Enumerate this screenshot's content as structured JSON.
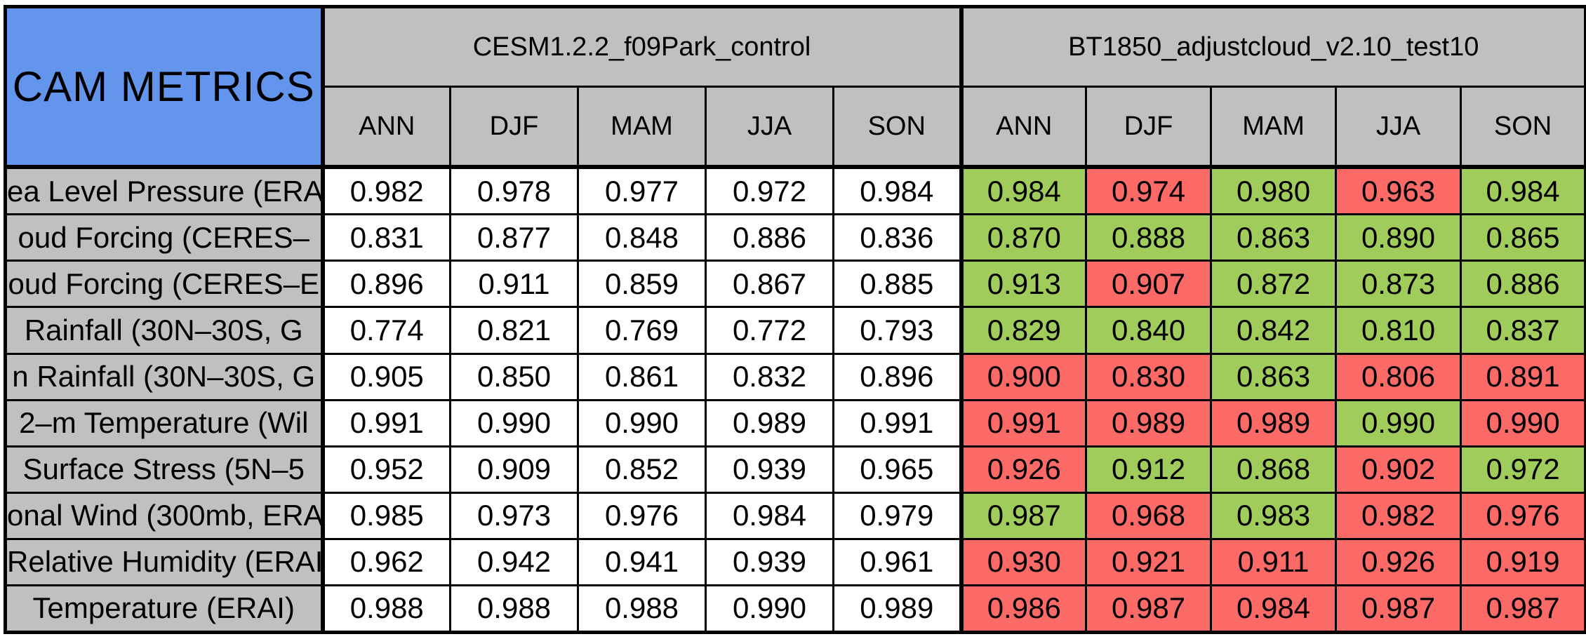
{
  "figure": {
    "title": "CAM METRICS"
  },
  "colors": {
    "title_bg": "#6495ed",
    "header_bg": "#c0c0c0",
    "control_cell_bg": "#ffffff",
    "better_bg": "#a0cc5c",
    "worse_bg": "#fc6a68",
    "border": "#000000",
    "text": "#000000"
  },
  "chart_data": {
    "type": "table",
    "title": "CAM METRICS",
    "column_groups": [
      "CESM1.2.2_f09Park_control",
      "BT1850_adjustcloud_v2.10_test10"
    ],
    "seasons": [
      "ANN",
      "DJF",
      "MAM",
      "JJA",
      "SON"
    ],
    "legend_note": "test-run cells shaded green (better) or red (worse) vs control",
    "rows": [
      {
        "label": "ea Level Pressure (ERA",
        "control": [
          "0.982",
          "0.978",
          "0.977",
          "0.972",
          "0.984"
        ],
        "test": [
          "0.984",
          "0.974",
          "0.980",
          "0.963",
          "0.984"
        ],
        "test_status": [
          "better",
          "worse",
          "better",
          "worse",
          "better"
        ]
      },
      {
        "label": "oud Forcing (CERES–",
        "control": [
          "0.831",
          "0.877",
          "0.848",
          "0.886",
          "0.836"
        ],
        "test": [
          "0.870",
          "0.888",
          "0.863",
          "0.890",
          "0.865"
        ],
        "test_status": [
          "better",
          "better",
          "better",
          "better",
          "better"
        ]
      },
      {
        "label": "oud Forcing (CERES–E",
        "control": [
          "0.896",
          "0.911",
          "0.859",
          "0.867",
          "0.885"
        ],
        "test": [
          "0.913",
          "0.907",
          "0.872",
          "0.873",
          "0.886"
        ],
        "test_status": [
          "better",
          "worse",
          "better",
          "better",
          "better"
        ]
      },
      {
        "label": "Rainfall (30N–30S, G",
        "control": [
          "0.774",
          "0.821",
          "0.769",
          "0.772",
          "0.793"
        ],
        "test": [
          "0.829",
          "0.840",
          "0.842",
          "0.810",
          "0.837"
        ],
        "test_status": [
          "better",
          "better",
          "better",
          "better",
          "better"
        ]
      },
      {
        "label": "n Rainfall (30N–30S, G",
        "control": [
          "0.905",
          "0.850",
          "0.861",
          "0.832",
          "0.896"
        ],
        "test": [
          "0.900",
          "0.830",
          "0.863",
          "0.806",
          "0.891"
        ],
        "test_status": [
          "worse",
          "worse",
          "better",
          "worse",
          "worse"
        ]
      },
      {
        "label": "2–m Temperature (Wil",
        "control": [
          "0.991",
          "0.990",
          "0.990",
          "0.989",
          "0.991"
        ],
        "test": [
          "0.991",
          "0.989",
          "0.989",
          "0.990",
          "0.990"
        ],
        "test_status": [
          "worse",
          "worse",
          "worse",
          "better",
          "worse"
        ]
      },
      {
        "label": "Surface Stress (5N–5",
        "control": [
          "0.952",
          "0.909",
          "0.852",
          "0.939",
          "0.965"
        ],
        "test": [
          "0.926",
          "0.912",
          "0.868",
          "0.902",
          "0.972"
        ],
        "test_status": [
          "worse",
          "better",
          "better",
          "worse",
          "better"
        ]
      },
      {
        "label": "onal Wind (300mb, ERA",
        "control": [
          "0.985",
          "0.973",
          "0.976",
          "0.984",
          "0.979"
        ],
        "test": [
          "0.987",
          "0.968",
          "0.983",
          "0.982",
          "0.976"
        ],
        "test_status": [
          "better",
          "worse",
          "better",
          "worse",
          "worse"
        ]
      },
      {
        "label": "Relative Humidity (ERAI",
        "control": [
          "0.962",
          "0.942",
          "0.941",
          "0.939",
          "0.961"
        ],
        "test": [
          "0.930",
          "0.921",
          "0.911",
          "0.926",
          "0.919"
        ],
        "test_status": [
          "worse",
          "worse",
          "worse",
          "worse",
          "worse"
        ]
      },
      {
        "label": "Temperature (ERAI)",
        "control": [
          "0.988",
          "0.988",
          "0.988",
          "0.990",
          "0.989"
        ],
        "test": [
          "0.986",
          "0.987",
          "0.984",
          "0.987",
          "0.987"
        ],
        "test_status": [
          "worse",
          "worse",
          "worse",
          "worse",
          "worse"
        ]
      }
    ]
  }
}
